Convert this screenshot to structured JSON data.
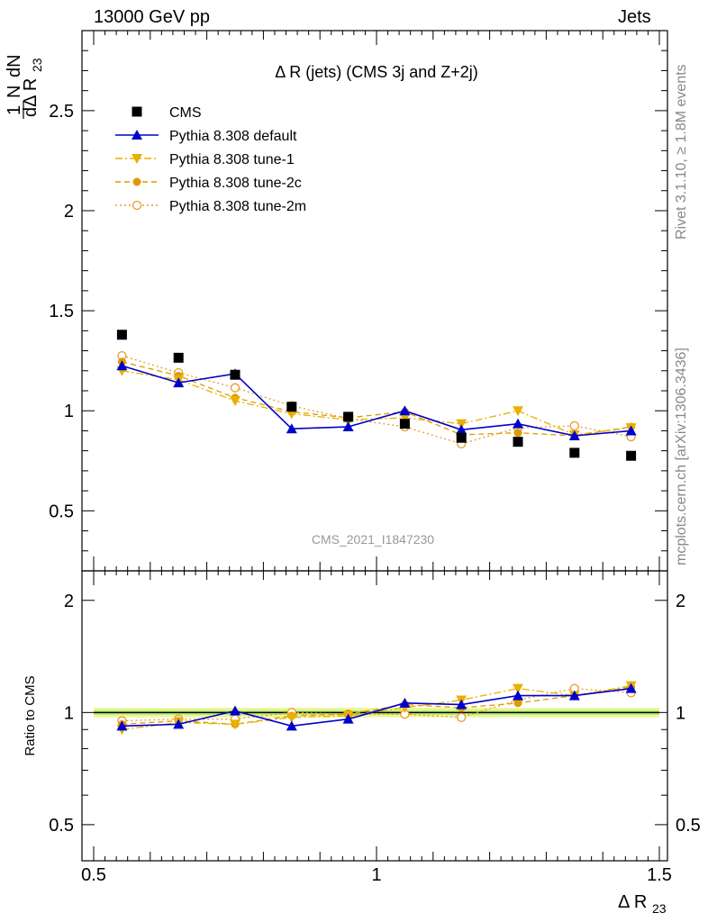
{
  "header": {
    "left": "13000 GeV pp",
    "right": "Jets"
  },
  "side_labels": {
    "rivet": "Rivet 3.1.10, ≥ 1.8M events",
    "mcplots": "mcplots.cern.ch [arXiv:1306.3436]"
  },
  "watermark": "CMS_2021_I1847230",
  "chart_data": [
    {
      "type": "scatter",
      "title": "Δ R (jets) (CMS 3j and Z+2j)",
      "ylabel": "1/N dN/dΔ R23",
      "xlim": [
        0.5,
        1.5
      ],
      "ylim": [
        0.2,
        2.9
      ],
      "yticks": [
        0.5,
        1,
        1.5,
        2,
        2.5
      ],
      "legend_position": "top-left",
      "x": [
        0.55,
        0.65,
        0.75,
        0.85,
        0.95,
        1.05,
        1.15,
        1.25,
        1.35,
        1.45
      ],
      "series": [
        {
          "name": "CMS",
          "color": "#000000",
          "style": "data",
          "marker": "square",
          "values": [
            1.38,
            1.265,
            1.18,
            1.02,
            0.97,
            0.935,
            0.865,
            0.845,
            0.79,
            0.775
          ]
        },
        {
          "name": "Pythia 8.308 default",
          "color": "#0000cc",
          "style": "solid",
          "marker": "triangle-up",
          "values": [
            1.225,
            1.14,
            1.185,
            0.91,
            0.92,
            1.0,
            0.905,
            0.935,
            0.875,
            0.9
          ]
        },
        {
          "name": "Pythia 8.308 tune-1",
          "color": "#e8b000",
          "style": "dashdot",
          "marker": "triangle-down",
          "values": [
            1.2,
            1.155,
            1.05,
            0.985,
            0.955,
            0.965,
            0.935,
            1.0,
            0.88,
            0.915
          ]
        },
        {
          "name": "Pythia 8.308 tune-2c",
          "color": "#e09a00",
          "style": "dashed",
          "marker": "circle",
          "values": [
            1.245,
            1.175,
            1.065,
            0.995,
            0.965,
            0.995,
            0.88,
            0.89,
            0.875,
            0.92
          ]
        },
        {
          "name": "Pythia 8.308 tune-2m",
          "color": "#ea9a2a",
          "style": "dotted",
          "marker": "open-circle",
          "values": [
            1.275,
            1.19,
            1.115,
            1.025,
            0.96,
            0.92,
            0.835,
            0.915,
            0.925,
            0.87
          ]
        }
      ]
    },
    {
      "type": "line",
      "ylabel": "Ratio to CMS",
      "xlabel": "Δ R23",
      "xlim": [
        0.5,
        1.5
      ],
      "ylim": [
        0.4,
        2.4
      ],
      "yticks": [
        0.5,
        1,
        2
      ],
      "xticks": [
        0.5,
        1,
        1.5
      ],
      "x": [
        0.55,
        0.65,
        0.75,
        0.85,
        0.95,
        1.05,
        1.15,
        1.25,
        1.35,
        1.45
      ],
      "series": [
        {
          "name": "Pythia 8.308 default",
          "values": [
            0.92,
            0.93,
            1.01,
            0.92,
            0.96,
            1.06,
            1.05,
            1.11,
            1.11,
            1.16
          ]
        },
        {
          "name": "Pythia 8.308 tune-1",
          "values": [
            0.9,
            0.94,
            0.93,
            0.97,
            0.98,
            1.03,
            1.08,
            1.16,
            1.11,
            1.18
          ]
        },
        {
          "name": "Pythia 8.308 tune-2c",
          "values": [
            0.93,
            0.95,
            0.93,
            0.98,
            0.99,
            1.05,
            1.03,
            1.06,
            1.11,
            1.17
          ]
        },
        {
          "name": "Pythia 8.308 tune-2m",
          "values": [
            0.95,
            0.96,
            0.96,
            1.0,
            0.99,
            0.99,
            0.97,
            1.08,
            1.16,
            1.13
          ]
        }
      ]
    }
  ]
}
